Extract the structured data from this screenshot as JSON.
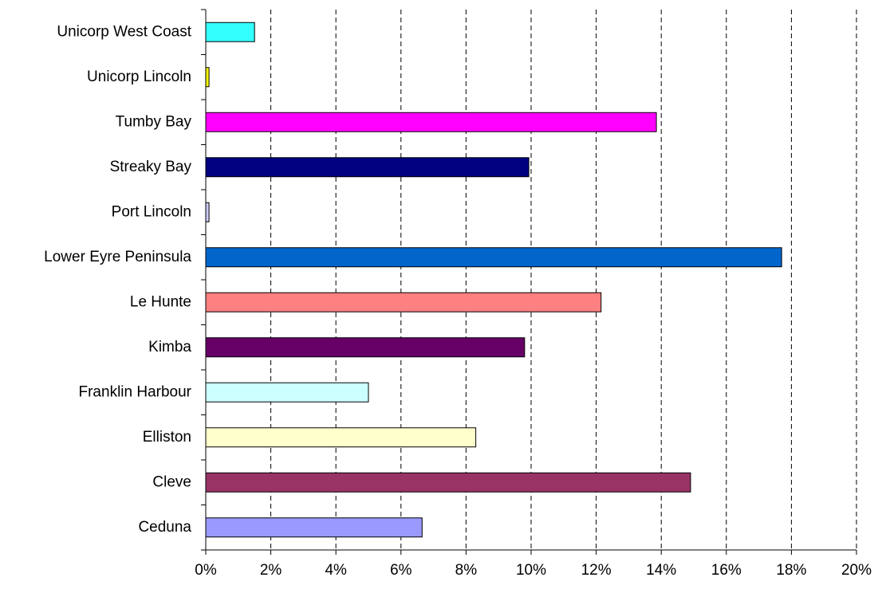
{
  "chart_data": {
    "type": "hbar",
    "categories": [
      "Unicorp West Coast",
      "Unicorp Lincoln",
      "Tumby Bay",
      "Streaky Bay",
      "Port Lincoln",
      "Lower Eyre Peninsula",
      "Le Hunte",
      "Kimba",
      "Franklin Harbour",
      "Elliston",
      "Cleve",
      "Ceduna"
    ],
    "values": [
      1.5,
      0.1,
      13.85,
      9.93,
      0.1,
      17.7,
      12.15,
      9.8,
      5.0,
      8.3,
      14.9,
      6.65
    ],
    "colors": [
      "#33ffff",
      "#ffff00",
      "#ff00ff",
      "#000080",
      "#ccccff",
      "#0066cc",
      "#ff8080",
      "#660066",
      "#ccffff",
      "#ffffcc",
      "#993366",
      "#9999ff"
    ],
    "xlim": [
      0,
      20
    ],
    "xticks": [
      {
        "value": 0,
        "label": "0%"
      },
      {
        "value": 2,
        "label": "2%"
      },
      {
        "value": 4,
        "label": "4%"
      },
      {
        "value": 6,
        "label": "6%"
      },
      {
        "value": 8,
        "label": "8%"
      },
      {
        "value": 10,
        "label": "10%"
      },
      {
        "value": 12,
        "label": "12%"
      },
      {
        "value": 14,
        "label": "14%"
      },
      {
        "value": 16,
        "label": "16%"
      },
      {
        "value": 18,
        "label": "18%"
      },
      {
        "value": 20,
        "label": "20%"
      }
    ],
    "grid": true
  }
}
